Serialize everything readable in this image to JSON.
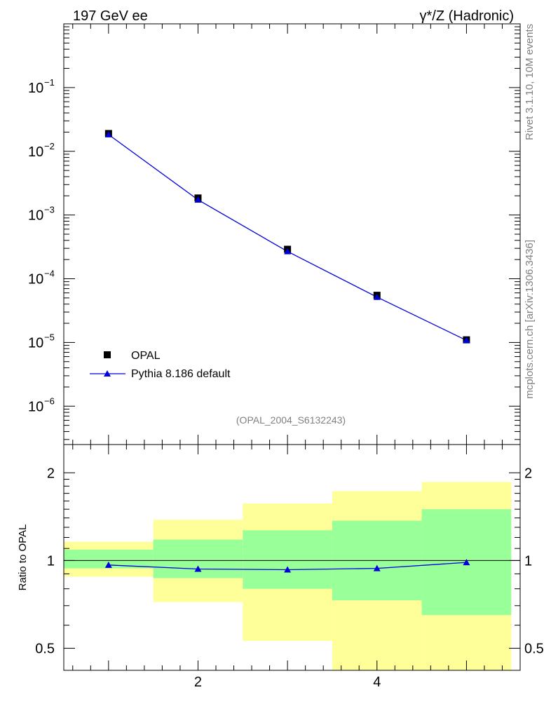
{
  "header": {
    "left_title": "197 GeV ee",
    "right_title": "γ*/Z (Hadronic)"
  },
  "side_text": {
    "version": "Rivet 3.1.10,  10M events",
    "source": "mcplots.cern.ch [arXiv:1306.3436]"
  },
  "watermark": "(OPAL_2004_S6132243)",
  "colors": {
    "data": "#000000",
    "mc": "#0000dd",
    "band_inner": "#99ff99",
    "band_outer": "#ffff99"
  },
  "chart_data": [
    {
      "type": "scatter",
      "name": "main",
      "yscale": "log",
      "xlim": [
        0.5,
        5.6
      ],
      "ylim": [
        2.5e-07,
        1
      ],
      "yticks": [
        {
          "value": 1e-06,
          "exp": "−6"
        },
        {
          "value": 1e-05,
          "exp": "−5"
        },
        {
          "value": 0.0001,
          "exp": "−4"
        },
        {
          "value": 0.001,
          "exp": "−3"
        },
        {
          "value": 0.01,
          "exp": "−2"
        },
        {
          "value": 0.1,
          "exp": "−1"
        }
      ],
      "legend_position": "bottom-left",
      "series": [
        {
          "name": "OPAL",
          "marker": "square",
          "x": [
            1,
            2,
            3,
            4,
            5
          ],
          "y": [
            0.019,
            0.00185,
            0.00029,
            5.5e-05,
            1.1e-05
          ]
        },
        {
          "name": "Pythia 8.186 default",
          "marker": "triangle",
          "x": [
            1,
            2,
            3,
            4,
            5
          ],
          "y": [
            0.0183,
            0.00173,
            0.000268,
            5.15e-05,
            1.08e-05
          ]
        }
      ]
    },
    {
      "type": "line",
      "name": "ratio",
      "ylabel": "Ratio to OPAL",
      "yscale": "log",
      "xlim": [
        0.5,
        5.6
      ],
      "ylim": [
        0.42,
        2.5
      ],
      "xticks": [
        "2",
        "4"
      ],
      "yticks": [
        "0.5",
        "1",
        "2"
      ],
      "bins": [
        [
          0.5,
          1.5
        ],
        [
          1.5,
          2.5
        ],
        [
          2.5,
          3.5
        ],
        [
          3.5,
          4.5
        ],
        [
          4.5,
          5.5
        ]
      ],
      "band_outer": [
        [
          0.88,
          1.16
        ],
        [
          0.72,
          1.38
        ],
        [
          0.53,
          1.57
        ],
        [
          0.3,
          1.73
        ],
        [
          0.3,
          1.86
        ]
      ],
      "band_inner": [
        [
          0.94,
          1.09
        ],
        [
          0.87,
          1.18
        ],
        [
          0.8,
          1.27
        ],
        [
          0.73,
          1.37
        ],
        [
          0.65,
          1.5
        ]
      ],
      "series": [
        {
          "name": "Pythia 8.186 default",
          "x": [
            1,
            2,
            3,
            4,
            5
          ],
          "y": [
            0.965,
            0.935,
            0.93,
            0.94,
            0.985
          ]
        }
      ]
    }
  ]
}
